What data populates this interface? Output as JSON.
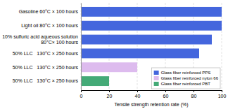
{
  "chart_data": {
    "type": "bar",
    "orientation": "horizontal",
    "categories": [
      "Gasoline 60°C × 100 hours",
      "Light oil 80°C × 100 hours",
      "10% sulfuric acid aqueous solution\n80°C× 100 hours",
      "50% LLC   130°C × 250 hours",
      "50% LLC   130°C × 250 hours",
      "50% LLC   130°C × 250 hours"
    ],
    "series": [
      {
        "name": "Glass fiber reinforced PPS",
        "color": "#4466dd",
        "values": [
          100,
          100,
          93,
          84,
          null,
          null
        ]
      },
      {
        "name": "Glass fiber reinforced nylon 66",
        "color": "#ddbbee",
        "values": [
          null,
          null,
          null,
          null,
          40,
          null
        ]
      },
      {
        "name": "Glass fiber reinforced PBT",
        "color": "#44aa77",
        "values": [
          null,
          null,
          null,
          null,
          null,
          20
        ]
      }
    ],
    "xlabel": "Tensile strength retention rate (%)",
    "xlim": [
      0,
      100
    ],
    "xticks": [
      0,
      20,
      40,
      60,
      80,
      100
    ],
    "grid": true,
    "legend": "lower right"
  }
}
